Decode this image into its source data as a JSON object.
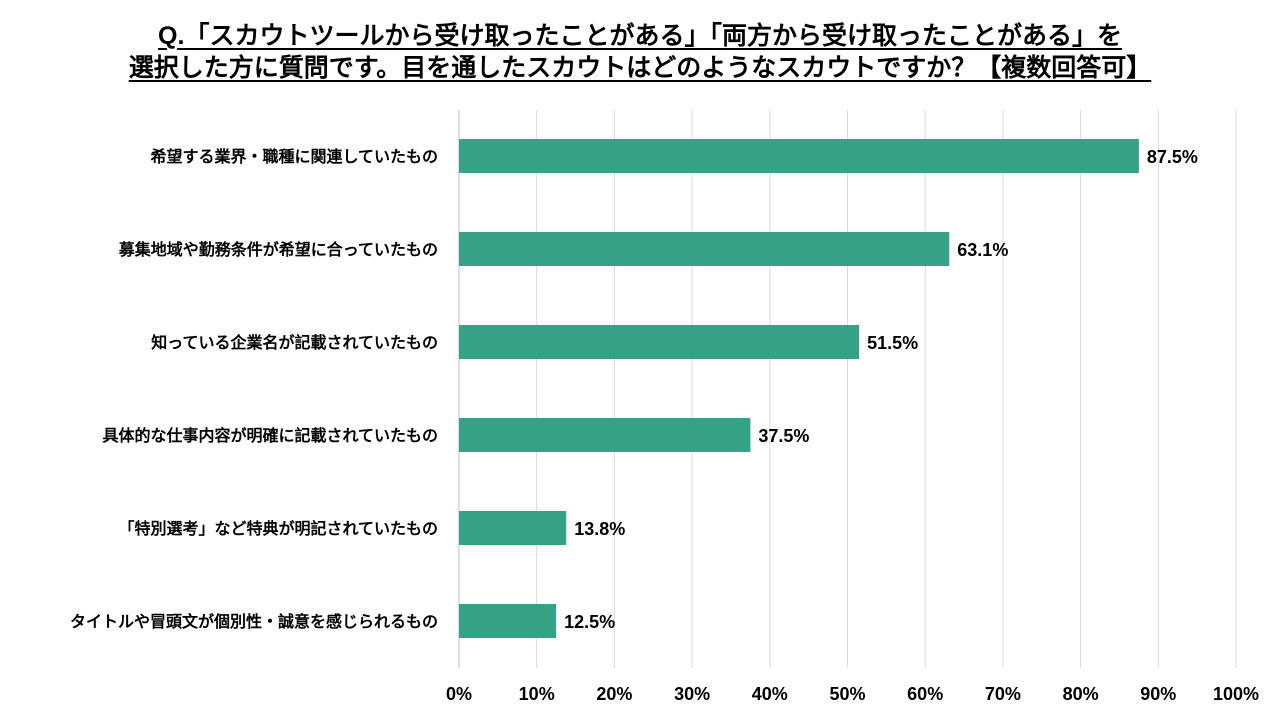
{
  "chart_data": {
    "type": "bar",
    "orientation": "horizontal",
    "title": [
      "Q.「スカウトツールから受け取ったことがある」「両方から受け取ったことがある」を",
      "選択した方に質問です。目を通したスカウトはどのようなスカウトですか？【複数回答可】"
    ],
    "categories": [
      "希望する業界・職種に関連していたもの",
      "募集地域や勤務条件が希望に合っていたもの",
      "知っている企業名が記載されていたもの",
      "具体的な仕事内容が明確に記載されていたもの",
      "「特別選考」など特典が明記されていたもの",
      "タイトルや冒頭文が個別性・誠意を感じられるもの"
    ],
    "values": [
      87.5,
      63.1,
      51.5,
      37.5,
      13.8,
      12.5
    ],
    "value_labels": [
      "87.5%",
      "63.1%",
      "51.5%",
      "37.5%",
      "13.8%",
      "12.5%"
    ],
    "xlim": [
      0,
      100
    ],
    "xticks": [
      0,
      10,
      20,
      30,
      40,
      50,
      60,
      70,
      80,
      90,
      100
    ],
    "xtick_labels": [
      "0%",
      "10%",
      "20%",
      "30%",
      "40%",
      "50%",
      "60%",
      "70%",
      "80%",
      "90%",
      "100%"
    ],
    "xlabel": "",
    "ylabel": "",
    "grid": true,
    "legend": "none",
    "bar_color": "#35a186",
    "grid_color": "#d9d9d9"
  }
}
